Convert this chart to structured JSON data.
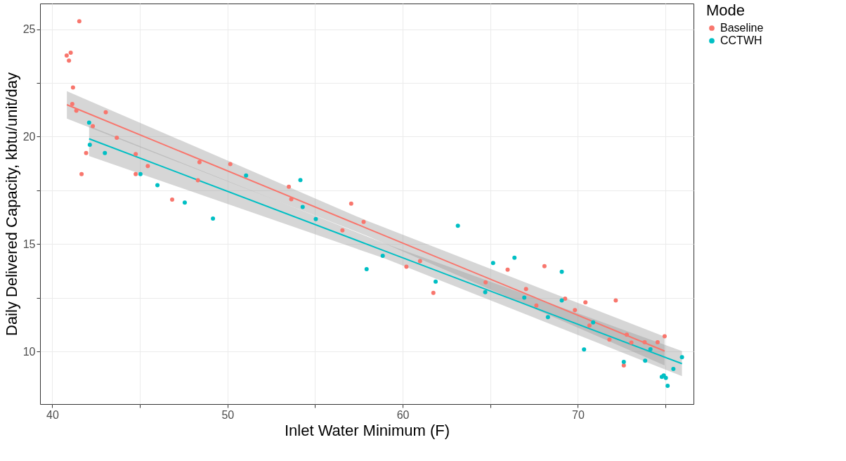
{
  "chart_data": {
    "type": "scatter",
    "xlabel": "Inlet Water Minimum (F)",
    "ylabel": "Daily Delivered Capacity, kbtu/unit/day",
    "legend_title": "Mode",
    "legend": "right",
    "grid": true,
    "marker": "circle",
    "xlim": [
      39.3,
      76.6
    ],
    "ylim": [
      7.55,
      26.2
    ],
    "xticks": [
      40,
      {
        "value": 45,
        "label": null
      },
      50,
      {
        "value": 55,
        "label": null
      },
      60,
      {
        "value": 65,
        "label": null
      },
      70,
      {
        "value": 75,
        "label": null
      }
    ],
    "yticks": [
      10,
      {
        "value": 12.5,
        "label": null
      },
      15,
      {
        "value": 17.5,
        "label": null
      },
      20,
      {
        "value": 22.5,
        "label": null
      },
      25
    ],
    "series": [
      {
        "name": "Baseline",
        "color": "#f8766d",
        "x": [
          41.54,
          40.82,
          41.05,
          40.95,
          41.18,
          41.14,
          41.37,
          43.05,
          42.31,
          43.68,
          41.93,
          41.67,
          44.76,
          44.76,
          45.45,
          46.84,
          48.4,
          50.16,
          48.31,
          53.5,
          53.64,
          57.06,
          57.77,
          56.56,
          60.99,
          60.21,
          61.75,
          64.73,
          65.99,
          67.04,
          68.09,
          67.63,
          69.27,
          70.43,
          69.83,
          70.66,
          72.16,
          71.8,
          72.79,
          73.05,
          73.81,
          74.55,
          74.95,
          72.62
        ],
        "values": [
          25.37,
          23.78,
          23.91,
          23.54,
          22.29,
          21.52,
          21.21,
          21.14,
          20.49,
          19.95,
          19.24,
          18.26,
          19.19,
          18.26,
          18.63,
          17.07,
          18.81,
          18.72,
          17.97,
          17.67,
          17.09,
          16.88,
          16.03,
          15.64,
          14.21,
          13.95,
          12.73,
          13.22,
          13.81,
          12.91,
          13.97,
          12.14,
          12.46,
          12.29,
          11.93,
          11.21,
          12.38,
          10.55,
          10.78,
          10.41,
          10.43,
          10.43,
          10.71,
          9.35
        ]
      },
      {
        "name": "CCTWH",
        "color": "#00bfc4",
        "x": [
          42.1,
          42.14,
          43.0,
          45.03,
          46.0,
          47.56,
          49.17,
          51.06,
          54.16,
          54.29,
          55.04,
          58.86,
          57.94,
          61.88,
          63.15,
          65.16,
          66.38,
          64.71,
          66.94,
          68.29,
          69.08,
          69.08,
          70.87,
          70.35,
          72.62,
          73.84,
          74.14,
          75.45,
          75.94,
          74.79,
          74.9,
          75.02,
          75.12
        ],
        "values": [
          20.65,
          19.62,
          19.24,
          18.26,
          17.74,
          16.93,
          16.19,
          18.19,
          17.98,
          16.73,
          16.16,
          14.45,
          13.83,
          13.25,
          15.85,
          14.12,
          14.36,
          12.76,
          12.51,
          11.6,
          13.71,
          12.38,
          11.35,
          10.09,
          9.51,
          9.57,
          10.1,
          9.19,
          9.73,
          8.82,
          8.88,
          8.77,
          8.4
        ]
      },
      {
        "type": "line",
        "marker": "none",
        "color": "#f8766d",
        "x": [
          40.83,
          58,
          74.95
        ],
        "values": [
          21.49,
          15.72,
          10.02
        ],
        "lower": [
          20.84,
          15.37,
          9.35
        ],
        "upper": [
          22.12,
          16.07,
          10.69
        ]
      },
      {
        "type": "line",
        "marker": "none",
        "color": "#00bfc4",
        "x": [
          42.1,
          59,
          75.94
        ],
        "values": [
          19.9,
          14.67,
          9.43
        ],
        "lower": [
          19.1,
          14.32,
          8.85
        ],
        "upper": [
          20.5,
          15.02,
          10.02
        ]
      }
    ]
  }
}
